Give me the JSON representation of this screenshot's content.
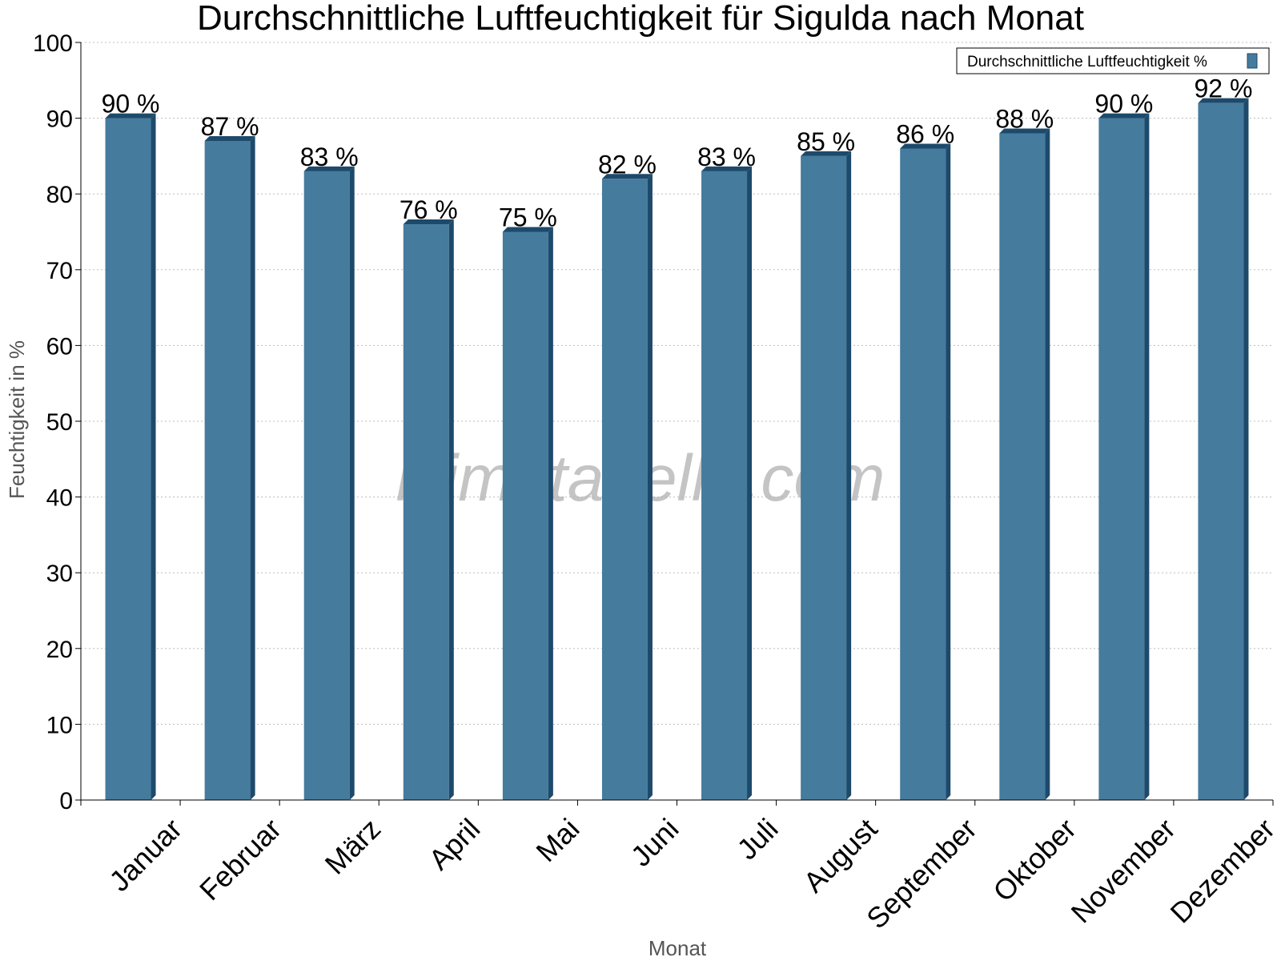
{
  "chart_data": {
    "type": "bar",
    "title": "Durchschnittliche Luftfeuchtigkeit für Sigulda nach Monat",
    "xlabel": "Monat",
    "ylabel": "Feuchtigkeit in %",
    "categories": [
      "Januar",
      "Februar",
      "März",
      "April",
      "Mai",
      "Juni",
      "Juli",
      "August",
      "September",
      "Oktober",
      "November",
      "Dezember"
    ],
    "series": [
      {
        "name": "Durchschnittliche Luftfeuchtigkeit %",
        "values": [
          90,
          87,
          83,
          76,
          75,
          82,
          83,
          85,
          86,
          88,
          90,
          92
        ],
        "data_labels": [
          "90 %",
          "87 %",
          "83 %",
          "76 %",
          "75 %",
          "82 %",
          "83 %",
          "85 %",
          "86 %",
          "88 %",
          "90 %",
          "92 %"
        ],
        "color": "#457b9d",
        "side_color": "#1d4a6b"
      }
    ],
    "ylim": [
      0,
      100
    ],
    "yticks": [
      0,
      10,
      20,
      30,
      40,
      50,
      60,
      70,
      80,
      90,
      100
    ],
    "grid": true,
    "legend_position": "top-right",
    "watermark": "klimatabelle.com"
  }
}
